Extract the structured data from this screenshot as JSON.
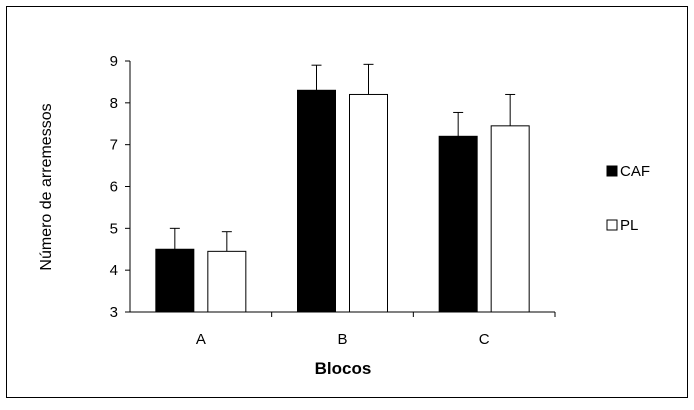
{
  "chart_data": {
    "type": "bar",
    "title": "",
    "xlabel": "Blocos",
    "ylabel": "Número de arremessos",
    "categories": [
      "A",
      "B",
      "C"
    ],
    "ylim": [
      3,
      9
    ],
    "yticks": [
      "3",
      "4",
      "5",
      "6",
      "7",
      "8",
      "9"
    ],
    "grid": false,
    "legend_position": "right",
    "series": [
      {
        "name": "CAF",
        "color": "#000000",
        "values": [
          4.5,
          8.3,
          7.2
        ],
        "error": [
          0.5,
          0.6,
          0.57
        ]
      },
      {
        "name": "PL",
        "color": "#ffffff",
        "values": [
          4.45,
          8.2,
          7.45
        ],
        "error": [
          0.47,
          0.72,
          0.75
        ]
      }
    ]
  }
}
